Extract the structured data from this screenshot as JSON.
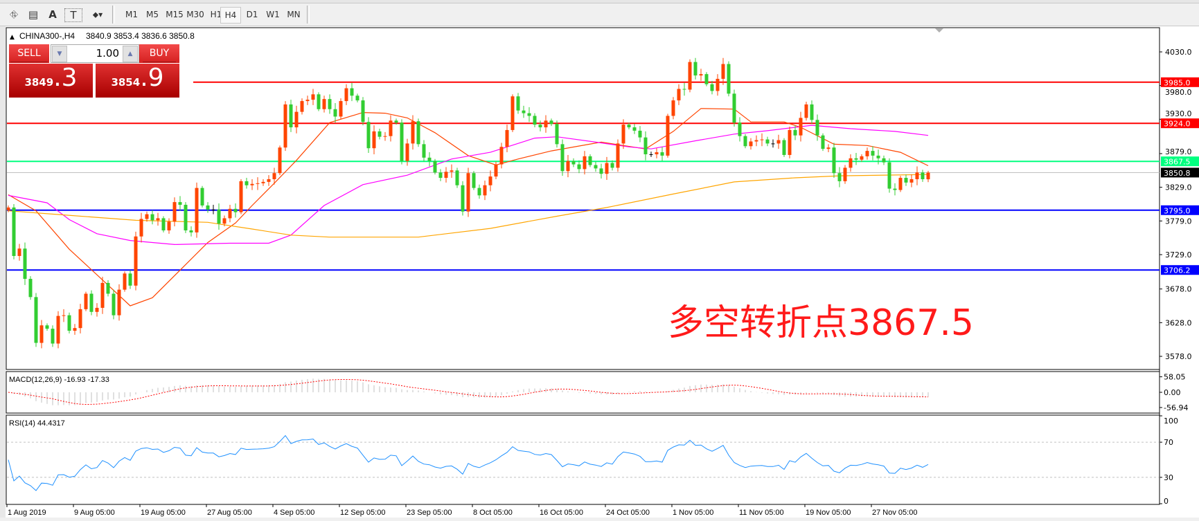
{
  "toolbar": {
    "tools": [
      {
        "icon": "chart-tools-e-icon",
        "glyph": "⛗"
      },
      {
        "icon": "grid-f-icon",
        "glyph": "▤"
      },
      {
        "icon": "text-a-icon",
        "glyph": "A"
      },
      {
        "icon": "text-label-t-icon",
        "glyph": "T"
      },
      {
        "icon": "arrows-dropdown-icon",
        "glyph": "⬥▾"
      }
    ],
    "timeframes": [
      "M1",
      "M5",
      "M15",
      "M30",
      "H1",
      "H4",
      "D1",
      "W1",
      "MN"
    ],
    "active_timeframe": "H4"
  },
  "chart_header": {
    "symbol": "CHINA300-,H4",
    "ohlc": "3840.9 3853.4 3836.6 3850.8"
  },
  "trade_panel": {
    "sell_label": "SELL",
    "buy_label": "BUY",
    "lot": "1.00",
    "sell_price_main": "3849",
    "sell_price_frac": ".3",
    "buy_price_main": "3854",
    "buy_price_frac": ".9"
  },
  "annotation": "多空转折点3867.5",
  "macd": {
    "label": "MACD(12,26,9) -16.93 -17.33",
    "axis": [
      {
        "v": 58.05,
        "t": "58.05"
      },
      {
        "v": 0,
        "t": "0.00"
      },
      {
        "v": -56.94,
        "t": "-56.94"
      }
    ],
    "colors": {
      "histogram": "#c0c0c0",
      "signal": "#ff0000"
    }
  },
  "rsi": {
    "label": "RSI(14) 44.4317",
    "axis": [
      {
        "v": 100,
        "t": "100"
      },
      {
        "v": 70,
        "t": "70"
      },
      {
        "v": 30,
        "t": "30"
      },
      {
        "v": 0,
        "t": "0"
      }
    ],
    "color": "#1e90ff"
  },
  "chart_data": {
    "type": "candlestick",
    "symbol": "CHINA300-",
    "timeframe": "H4",
    "ylim": [
      3558,
      4064
    ],
    "up_color": "#ff4500",
    "down_color": "#32cd32",
    "price_ticks": [
      "4030.0",
      "3980.0",
      "3930.0",
      "3879.0",
      "3829.0",
      "3779.0",
      "3729.0",
      "3678.0",
      "3628.0",
      "3578.0"
    ],
    "date_labels": [
      "1 Aug 2019",
      "9 Aug 05:00",
      "19 Aug 05:00",
      "27 Aug 05:00",
      "4 Sep 05:00",
      "12 Sep 05:00",
      "23 Sep 05:00",
      "8 Oct 05:00",
      "16 Oct 05:00",
      "24 Oct 05:00",
      "1 Nov 05:00",
      "11 Nov 05:00",
      "19 Nov 05:00",
      "27 Nov 05:00"
    ],
    "bars_per_date_label": 12,
    "last_bar": {
      "open": 3840.9,
      "high": 3853.4,
      "low": 3836.6,
      "close": 3850.8
    },
    "close": [
      3799,
      3727,
      3738,
      3693,
      3666,
      3598,
      3624,
      3619,
      3597,
      3638,
      3639,
      3616,
      3620,
      3648,
      3671,
      3644,
      3650,
      3687,
      3671,
      3639,
      3677,
      3701,
      3683,
      3756,
      3782,
      3789,
      3780,
      3783,
      3765,
      3778,
      3807,
      3803,
      3765,
      3762,
      3828,
      3802,
      3796,
      3796,
      3775,
      3783,
      3797,
      3792,
      3838,
      3832,
      3834,
      3835,
      3837,
      3841,
      3850,
      3888,
      3952,
      3918,
      3941,
      3957,
      3959,
      3967,
      3945,
      3960,
      3945,
      3934,
      3957,
      3976,
      3965,
      3958,
      3926,
      3887,
      3912,
      3904,
      3905,
      3928,
      3925,
      3868,
      3894,
      3927,
      3893,
      3873,
      3868,
      3851,
      3843,
      3852,
      3854,
      3832,
      3793,
      3850,
      3828,
      3817,
      3832,
      3845,
      3863,
      3889,
      3914,
      3964,
      3943,
      3939,
      3935,
      3922,
      3918,
      3928,
      3923,
      3893,
      3853,
      3868,
      3863,
      3856,
      3875,
      3862,
      3857,
      3849,
      3865,
      3858,
      3894,
      3922,
      3918,
      3913,
      3903,
      3878,
      3878,
      3881,
      3876,
      3935,
      3958,
      3975,
      3974,
      4015,
      3995,
      3997,
      3982,
      3972,
      3990,
      4012,
      3968,
      3925,
      3905,
      3890,
      3897,
      3899,
      3900,
      3894,
      3894,
      3899,
      3877,
      3914,
      3906,
      3932,
      3952,
      3929,
      3906,
      3886,
      3888,
      3850,
      3838,
      3858,
      3872,
      3870,
      3875,
      3883,
      3876,
      3872,
      3866,
      3827,
      3825,
      3843,
      3836,
      3841,
      3851,
      3841,
      3850.8
    ],
    "levels": [
      {
        "price": 3985.0,
        "label": "3985.0",
        "color": "#ff0000",
        "bg": "#ff0000"
      },
      {
        "price": 3924.0,
        "label": "3924.0",
        "color": "#ff0000",
        "bg": "#ff0000"
      },
      {
        "price": 3867.5,
        "label": "3867.5",
        "color": "#00ff7f",
        "bg": "#00ff7f"
      },
      {
        "price": 3850.8,
        "label": "3850.8",
        "color": "#c0c0c0",
        "bg": "#000000"
      },
      {
        "price": 3795.0,
        "label": "3795.0",
        "color": "#0000ff",
        "bg": "#0000ff"
      },
      {
        "price": 3706.2,
        "label": "3706.2",
        "color": "#0000ff",
        "bg": "#0000ff"
      }
    ],
    "moving_averages": [
      {
        "color": "#ff4500",
        "points": [
          [
            0,
            3818
          ],
          [
            5,
            3794
          ],
          [
            11,
            3737
          ],
          [
            16,
            3699
          ],
          [
            22,
            3653
          ],
          [
            26,
            3665
          ],
          [
            31,
            3706
          ],
          [
            36,
            3747
          ],
          [
            41,
            3776
          ],
          [
            44,
            3802
          ],
          [
            48,
            3835
          ],
          [
            52,
            3869
          ],
          [
            58,
            3925
          ],
          [
            64,
            3940
          ],
          [
            68,
            3939
          ],
          [
            72,
            3932
          ],
          [
            77,
            3910
          ],
          [
            83,
            3876
          ],
          [
            88,
            3862
          ],
          [
            92,
            3871
          ],
          [
            98,
            3883
          ],
          [
            107,
            3896
          ],
          [
            111,
            3891
          ],
          [
            115,
            3886
          ],
          [
            120,
            3912
          ],
          [
            125,
            3946
          ],
          [
            131,
            3945
          ],
          [
            134,
            3926
          ],
          [
            140,
            3926
          ],
          [
            143,
            3918
          ],
          [
            149,
            3893
          ],
          [
            155,
            3891
          ],
          [
            161,
            3881
          ],
          [
            166,
            3861
          ]
        ]
      },
      {
        "color": "#ff00ff",
        "points": [
          [
            0,
            3817
          ],
          [
            7,
            3806
          ],
          [
            11,
            3781
          ],
          [
            16,
            3760
          ],
          [
            22,
            3750
          ],
          [
            30,
            3744
          ],
          [
            40,
            3746
          ],
          [
            47,
            3746
          ],
          [
            51,
            3758
          ],
          [
            57,
            3802
          ],
          [
            64,
            3833
          ],
          [
            72,
            3847
          ],
          [
            80,
            3871
          ],
          [
            87,
            3881
          ],
          [
            95,
            3902
          ],
          [
            99,
            3904
          ],
          [
            106,
            3896
          ],
          [
            112,
            3889
          ],
          [
            116,
            3886
          ],
          [
            124,
            3898
          ],
          [
            131,
            3908
          ],
          [
            137,
            3913
          ],
          [
            145,
            3921
          ],
          [
            152,
            3916
          ],
          [
            160,
            3912
          ],
          [
            166,
            3906
          ]
        ]
      },
      {
        "color": "#ffa500",
        "points": [
          [
            0,
            3794
          ],
          [
            10,
            3788
          ],
          [
            23,
            3780
          ],
          [
            36,
            3777
          ],
          [
            44,
            3767
          ],
          [
            51,
            3758
          ],
          [
            58,
            3755
          ],
          [
            74,
            3755
          ],
          [
            87,
            3768
          ],
          [
            99,
            3786
          ],
          [
            108,
            3799
          ],
          [
            120,
            3819
          ],
          [
            131,
            3837
          ],
          [
            142,
            3843
          ],
          [
            150,
            3846
          ],
          [
            166,
            3848
          ]
        ]
      }
    ]
  }
}
